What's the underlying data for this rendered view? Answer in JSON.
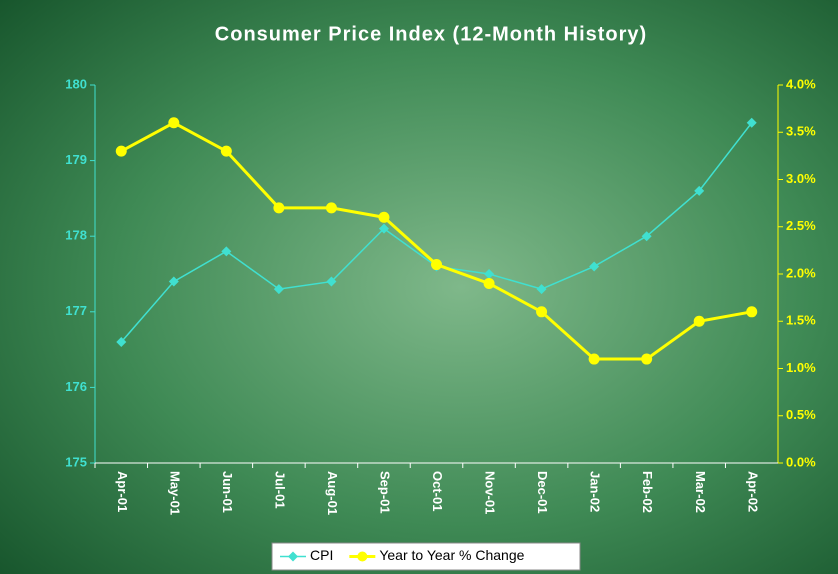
{
  "chart_data": {
    "type": "line",
    "title": "Consumer Price Index (12-Month History)",
    "categories": [
      "Apr-01",
      "May-01",
      "Jun-01",
      "Jul-01",
      "Aug-01",
      "Sep-01",
      "Oct-01",
      "Nov-01",
      "Dec-01",
      "Jan-02",
      "Feb-02",
      "Mar-02",
      "Apr-02"
    ],
    "series": [
      {
        "name": "CPI",
        "color": "#40e0d0",
        "marker": "diamond",
        "values": [
          176.6,
          177.4,
          177.8,
          177.3,
          177.4,
          178.1,
          177.6,
          177.5,
          177.3,
          177.6,
          178.0,
          178.6,
          179.5
        ]
      },
      {
        "name": "Year to Year % Change",
        "color": "#ffff00",
        "marker": "circle",
        "axis": "y2",
        "values": [
          3.3,
          3.6,
          3.3,
          2.7,
          2.7,
          2.6,
          2.1,
          1.9,
          1.6,
          1.1,
          1.1,
          1.5,
          1.6
        ]
      }
    ],
    "ylim": [
      175,
      180
    ],
    "yticks": [
      175,
      176,
      177,
      178,
      179,
      180
    ],
    "y2lim": [
      0,
      4
    ],
    "y2ticks": [
      {
        "value": 0,
        "label": "0.0%"
      },
      {
        "value": 0.5,
        "label": "0.5%"
      },
      {
        "value": 1,
        "label": "1.0%"
      },
      {
        "value": 1.5,
        "label": "1.5%"
      },
      {
        "value": 2,
        "label": "2.0%"
      },
      {
        "value": 2.5,
        "label": "2.5%"
      },
      {
        "value": 3,
        "label": "3.0%"
      },
      {
        "value": 3.5,
        "label": "3.5%"
      },
      {
        "value": 4,
        "label": "4.0%"
      }
    ],
    "legend": "bottom"
  }
}
